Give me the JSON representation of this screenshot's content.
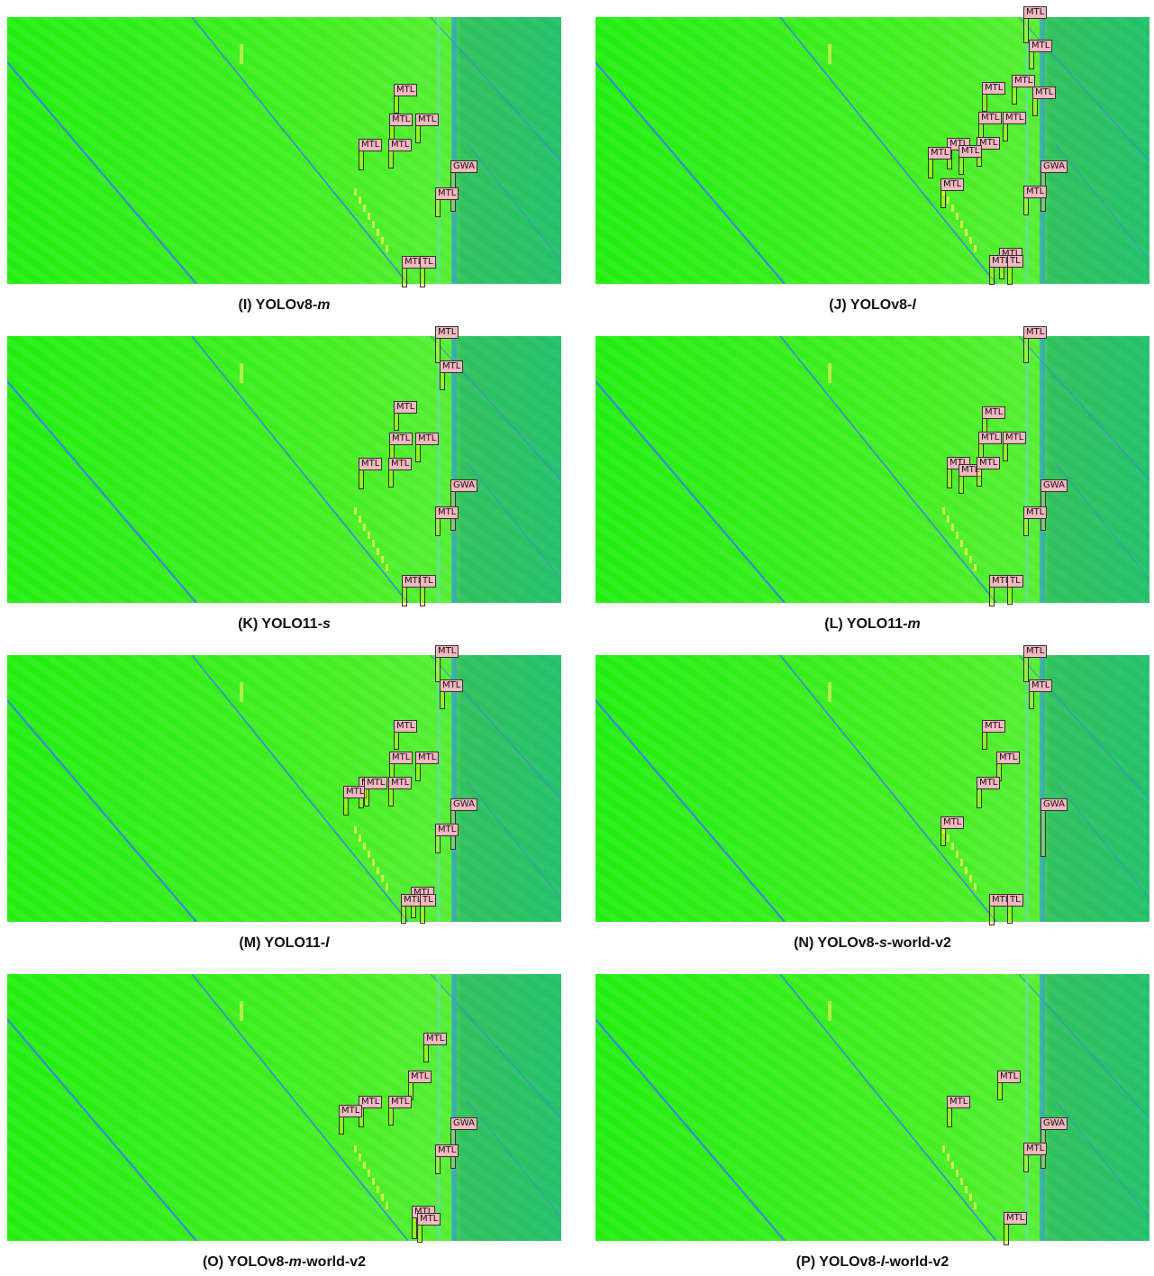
{
  "panels": [
    {
      "prefix": "(I) YOLOv8-",
      "model": "m",
      "suffix": "",
      "detections": [
        "MTL",
        "MTL",
        "MTL",
        "MTL",
        "MTL",
        "GWA",
        "MTL",
        "MTL",
        "TL"
      ]
    },
    {
      "prefix": "(J) YOLOv8-",
      "model": "l",
      "suffix": "",
      "detections": [
        "MTL",
        "MTL",
        "MTL",
        "MTL",
        "MTL",
        "MTL",
        "MTL",
        "MTL",
        "MTL",
        "MTL",
        "MTL",
        "MTL",
        "GWA",
        "MTL",
        "MTL",
        "MTL",
        "TL"
      ]
    },
    {
      "prefix": "(K) YOLO11-",
      "model": "s",
      "suffix": "",
      "detections": [
        "MTL",
        "MTL",
        "MTL",
        "MTL",
        "MTL",
        "MTL",
        "MTL",
        "GWA",
        "MTL",
        "MTL",
        "TL"
      ]
    },
    {
      "prefix": "(L) YOLO11-",
      "model": "m",
      "suffix": "",
      "detections": [
        "MTL",
        "MTL",
        "MTL",
        "MTL",
        "MTL",
        "MTL",
        "MTL",
        "GWA",
        "MTL",
        "MTL",
        "TL"
      ]
    },
    {
      "prefix": "(M) YOLO11-",
      "model": "l",
      "suffix": "",
      "detections": [
        "MTL",
        "MTL",
        "MTL",
        "MTL",
        "MTL",
        "MTL",
        "MTL",
        "MTL",
        "MTL",
        "GWA",
        "MTL",
        "MTL",
        "MTL",
        "TL"
      ]
    },
    {
      "prefix": "(N) YOLOv8-",
      "model": "s",
      "suffix": "-world-v2",
      "detections": [
        "MTL",
        "MTL",
        "MTL",
        "MTL",
        "MTL",
        "MTL",
        "GWA",
        "MTL",
        "TL"
      ]
    },
    {
      "prefix": "(O) YOLOv8-",
      "model": "m",
      "suffix": "-world-v2",
      "detections": [
        "MTL",
        "MTL",
        "MTL",
        "MTL",
        "MTL",
        "GWA",
        "MTL",
        "MTL",
        "MTL"
      ]
    },
    {
      "prefix": "(P) YOLOv8-",
      "model": "l",
      "suffix": "-world-v2",
      "detections": [
        "MTL",
        "MTL",
        "GWA",
        "MTL",
        "MTL"
      ]
    }
  ],
  "colors": {
    "field": "#33ee22",
    "line": "#3a8ad8",
    "label_bg": "#f4b8c0"
  }
}
